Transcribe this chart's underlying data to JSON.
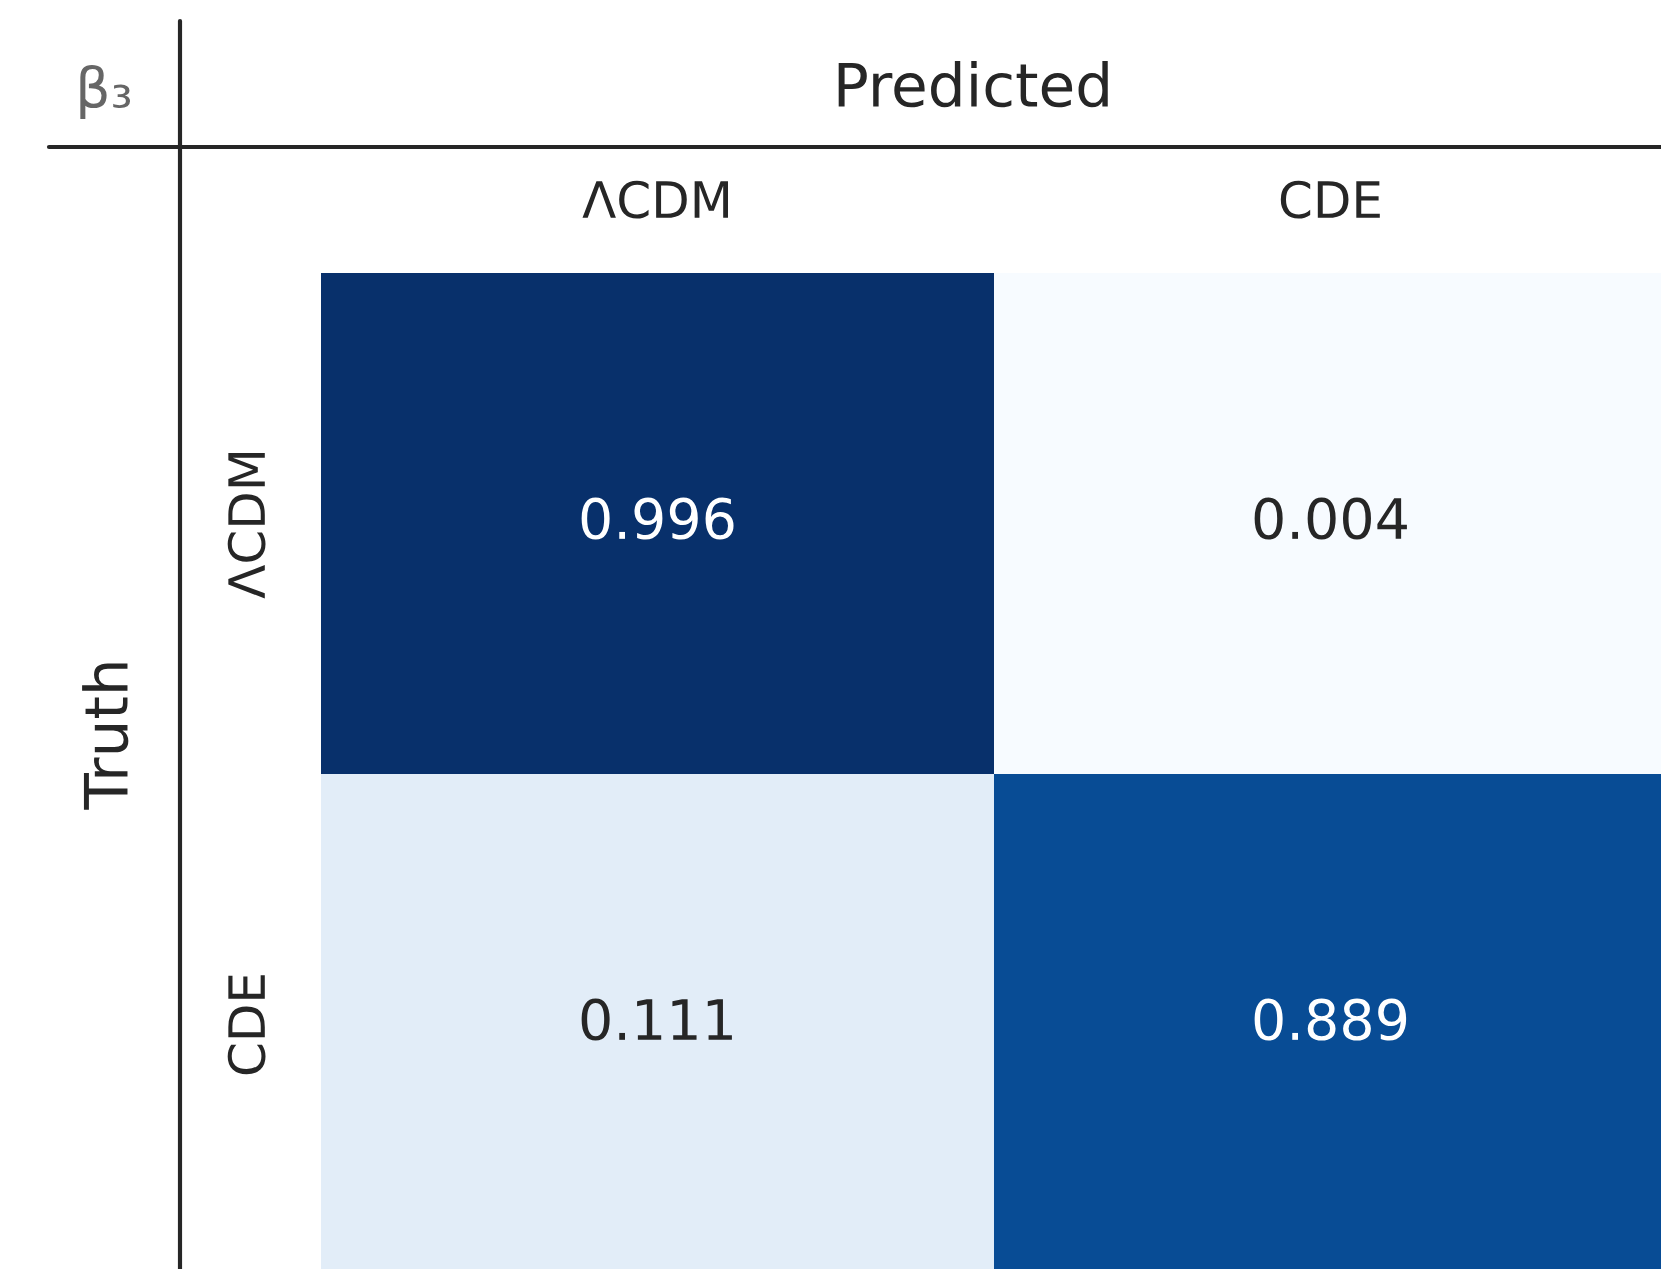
{
  "chart_data": {
    "type": "heatmap",
    "xlabel": "Predicted",
    "ylabel": "Truth",
    "annotations": [
      "β₃"
    ],
    "categories": [
      "ΛCDM",
      "CDE"
    ],
    "y_categories": [
      "ΛCDM",
      "CDE"
    ],
    "cells": [
      [
        0.996,
        0.004
      ],
      [
        0.111,
        0.889
      ]
    ],
    "data_labels": true
  }
}
